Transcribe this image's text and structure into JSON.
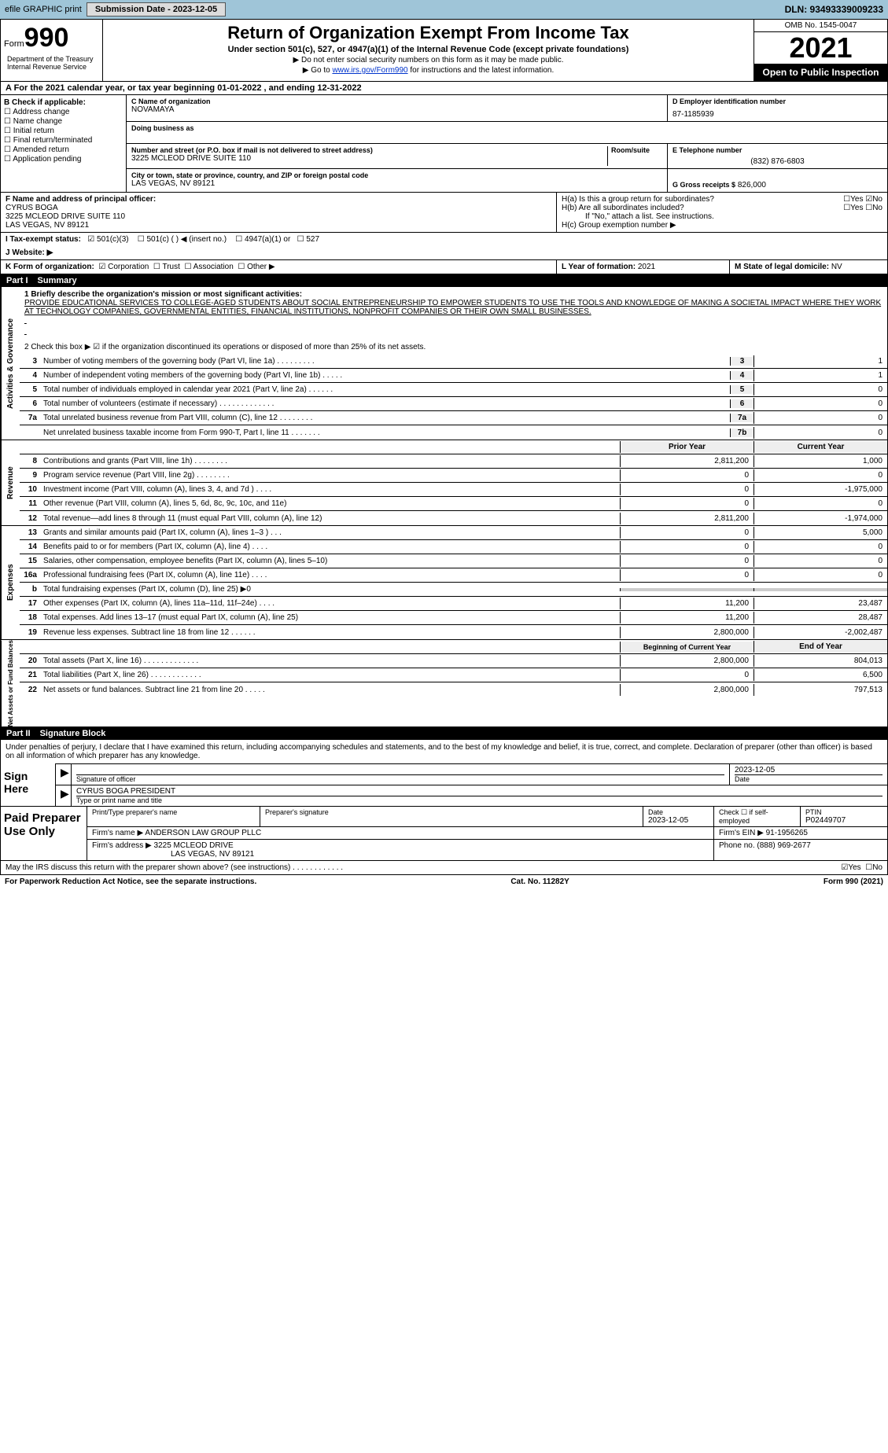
{
  "topbar": {
    "left": "efile GRAPHIC print",
    "btn": "Submission Date - 2023-12-05",
    "right": "DLN: 93493339009233"
  },
  "header": {
    "form_prefix": "Form",
    "form_num": "990",
    "title": "Return of Organization Exempt From Income Tax",
    "sub1": "Under section 501(c), 527, or 4947(a)(1) of the Internal Revenue Code (except private foundations)",
    "sub2": "▶ Do not enter social security numbers on this form as it may be made public.",
    "sub3_pre": "▶ Go to ",
    "sub3_link": "www.irs.gov/Form990",
    "sub3_post": " for instructions and the latest information.",
    "omb": "OMB No. 1545-0047",
    "year": "2021",
    "open": "Open to Public Inspection",
    "dept": "Department of the Treasury Internal Revenue Service"
  },
  "cal": "A For the 2021 calendar year, or tax year beginning 01-01-2022    , and ending 12-31-2022",
  "B": {
    "label": "B Check if applicable:",
    "opts": [
      "Address change",
      "Name change",
      "Initial return",
      "Final return/terminated",
      "Amended return",
      "Application pending"
    ]
  },
  "C": {
    "name_label": "C Name of organization",
    "name": "NOVAMAYA",
    "dba_label": "Doing business as",
    "addr_label": "Number and street (or P.O. box if mail is not delivered to street address)",
    "room_label": "Room/suite",
    "addr": "3225 MCLEOD DRIVE SUITE 110",
    "city_label": "City or town, state or province, country, and ZIP or foreign postal code",
    "city": "LAS VEGAS, NV  89121"
  },
  "D": {
    "label": "D Employer identification number",
    "val": "87-1185939"
  },
  "E": {
    "label": "E Telephone number",
    "val": "(832) 876-6803"
  },
  "G": {
    "label": "G Gross receipts $",
    "val": "826,000"
  },
  "F": {
    "label": "F  Name and address of principal officer:",
    "name": "CYRUS BOGA",
    "addr": "3225 MCLEOD DRIVE SUITE 110",
    "city": "LAS VEGAS, NV  89121"
  },
  "H": {
    "a": "H(a)  Is this a group return for subordinates?",
    "a_no": "No",
    "b": "H(b)  Are all subordinates included?",
    "b_note": "If \"No,\" attach a list. See instructions.",
    "c": "H(c)  Group exemption number ▶"
  },
  "I": {
    "label": "I  Tax-exempt status:",
    "opt1": "501(c)(3)",
    "opt2": "501(c) (   ) ◀ (insert no.)",
    "opt3": "4947(a)(1) or",
    "opt4": "527"
  },
  "J": {
    "label": "J  Website: ▶"
  },
  "K": {
    "label": "K Form of organization:",
    "corp": "Corporation",
    "trust": "Trust",
    "assoc": "Association",
    "other": "Other ▶"
  },
  "L": {
    "label": "L Year of formation:",
    "val": "2021"
  },
  "M": {
    "label": "M State of legal domicile:",
    "val": "NV"
  },
  "part1": {
    "num": "Part I",
    "title": "Summary"
  },
  "mission": {
    "q": "1  Briefly describe the organization's mission or most significant activities:",
    "text": "PROVIDE EDUCATIONAL SERVICES TO COLLEGE-AGED STUDENTS ABOUT SOCIAL ENTREPRENEURSHIP TO EMPOWER STUDENTS TO USE THE TOOLS AND KNOWLEDGE OF MAKING A SOCIETAL IMPACT WHERE THEY WORK AT TECHNOLOGY COMPANIES, GOVERNMENTAL ENTITIES, FINANCIAL INSTITUTIONS, NONPROFIT COMPANIES OR THEIR OWN SMALL BUSINESSES.",
    "l2": "2   Check this box ▶ ☑ if the organization discontinued its operations or disposed of more than 25% of its net assets."
  },
  "gov_lines": [
    {
      "n": "3",
      "t": "Number of voting members of the governing body (Part VI, line 1a)  .   .   .   .   .   .   .   .   .",
      "b": "3",
      "v": "1"
    },
    {
      "n": "4",
      "t": "Number of independent voting members of the governing body (Part VI, line 1b)   .   .   .   .   .",
      "b": "4",
      "v": "1"
    },
    {
      "n": "5",
      "t": "Total number of individuals employed in calendar year 2021 (Part V, line 2a)  .   .   .   .   .   .",
      "b": "5",
      "v": "0"
    },
    {
      "n": "6",
      "t": "Total number of volunteers (estimate if necessary)   .   .   .   .   .   .   .   .   .   .   .   .   .",
      "b": "6",
      "v": "0"
    },
    {
      "n": "7a",
      "t": "Total unrelated business revenue from Part VIII, column (C), line 12  .   .   .   .   .   .   .   .",
      "b": "7a",
      "v": "0"
    },
    {
      "n": "",
      "t": "Net unrelated business taxable income from Form 990-T, Part I, line 11  .   .   .   .   .   .   .",
      "b": "7b",
      "v": "0"
    }
  ],
  "rev_hdr": {
    "prior": "Prior Year",
    "curr": "Current Year"
  },
  "rev_lines": [
    {
      "n": "8",
      "t": "Contributions and grants (Part VIII, line 1h)  .   .   .   .   .   .   .   .",
      "p": "2,811,200",
      "c": "1,000"
    },
    {
      "n": "9",
      "t": "Program service revenue (Part VIII, line 2g)  .   .   .   .   .   .   .   .",
      "p": "0",
      "c": "0"
    },
    {
      "n": "10",
      "t": "Investment income (Part VIII, column (A), lines 3, 4, and 7d )  .   .   .   .",
      "p": "0",
      "c": "-1,975,000"
    },
    {
      "n": "11",
      "t": "Other revenue (Part VIII, column (A), lines 5, 6d, 8c, 9c, 10c, and 11e)",
      "p": "0",
      "c": "0"
    },
    {
      "n": "12",
      "t": "Total revenue—add lines 8 through 11 (must equal Part VIII, column (A), line 12)",
      "p": "2,811,200",
      "c": "-1,974,000"
    }
  ],
  "exp_lines": [
    {
      "n": "13",
      "t": "Grants and similar amounts paid (Part IX, column (A), lines 1–3 )  .   .   .",
      "p": "0",
      "c": "5,000"
    },
    {
      "n": "14",
      "t": "Benefits paid to or for members (Part IX, column (A), line 4)  .   .   .   .",
      "p": "0",
      "c": "0"
    },
    {
      "n": "15",
      "t": "Salaries, other compensation, employee benefits (Part IX, column (A), lines 5–10)",
      "p": "0",
      "c": "0"
    },
    {
      "n": "16a",
      "t": "Professional fundraising fees (Part IX, column (A), line 11e)  .   .   .   .",
      "p": "0",
      "c": "0"
    },
    {
      "n": "b",
      "t": "Total fundraising expenses (Part IX, column (D), line 25) ▶0",
      "p": "",
      "c": ""
    },
    {
      "n": "17",
      "t": "Other expenses (Part IX, column (A), lines 11a–11d, 11f–24e)  .   .   .   .",
      "p": "11,200",
      "c": "23,487"
    },
    {
      "n": "18",
      "t": "Total expenses. Add lines 13–17 (must equal Part IX, column (A), line 25)",
      "p": "11,200",
      "c": "28,487"
    },
    {
      "n": "19",
      "t": "Revenue less expenses. Subtract line 18 from line 12  .   .   .   .   .   .",
      "p": "2,800,000",
      "c": "-2,002,487"
    }
  ],
  "na_hdr": {
    "beg": "Beginning of Current Year",
    "end": "End of Year"
  },
  "na_lines": [
    {
      "n": "20",
      "t": "Total assets (Part X, line 16)  .   .   .   .   .   .   .   .   .   .   .   .   .",
      "p": "2,800,000",
      "c": "804,013"
    },
    {
      "n": "21",
      "t": "Total liabilities (Part X, line 26)  .   .   .   .   .   .   .   .   .   .   .   .",
      "p": "0",
      "c": "6,500"
    },
    {
      "n": "22",
      "t": "Net assets or fund balances. Subtract line 21 from line 20  .   .   .   .   .",
      "p": "2,800,000",
      "c": "797,513"
    }
  ],
  "vtabs": {
    "gov": "Activities & Governance",
    "rev": "Revenue",
    "exp": "Expenses",
    "na": "Net Assets or Fund Balances"
  },
  "part2": {
    "num": "Part II",
    "title": "Signature Block"
  },
  "sig": {
    "intro": "Under penalties of perjury, I declare that I have examined this return, including accompanying schedules and statements, and to the best of my knowledge and belief, it is true, correct, and complete. Declaration of preparer (other than officer) is based on all information of which preparer has any knowledge.",
    "sign_here": "Sign Here",
    "sig_officer": "Signature of officer",
    "date": "Date",
    "date_val": "2023-12-05",
    "name": "CYRUS BOGA  PRESIDENT",
    "name_label": "Type or print name and title"
  },
  "prep": {
    "label": "Paid Preparer Use Only",
    "h1": "Print/Type preparer's name",
    "h2": "Preparer's signature",
    "h3": "Date",
    "h3v": "2023-12-05",
    "h4": "Check ☐ if self-employed",
    "h5": "PTIN",
    "h5v": "P02449707",
    "firm_label": "Firm's name    ▶",
    "firm": "ANDERSON LAW GROUP PLLC",
    "ein_label": "Firm's EIN ▶",
    "ein": "91-1956265",
    "addr_label": "Firm's address ▶",
    "addr1": "3225 MCLEOD DRIVE",
    "addr2": "LAS VEGAS, NV  89121",
    "phone_label": "Phone no.",
    "phone": "(888) 969-2677"
  },
  "footer": {
    "q": "May the IRS discuss this return with the preparer shown above? (see instructions)  .   .   .   .   .   .   .   .   .   .   .   .",
    "yes": "Yes",
    "no": "No",
    "pra": "For Paperwork Reduction Act Notice, see the separate instructions.",
    "cat": "Cat. No. 11282Y",
    "form": "Form 990 (2021)"
  },
  "colors": {
    "topbar": "#9fc5d8",
    "black": "#000000",
    "link": "#0033cc"
  }
}
